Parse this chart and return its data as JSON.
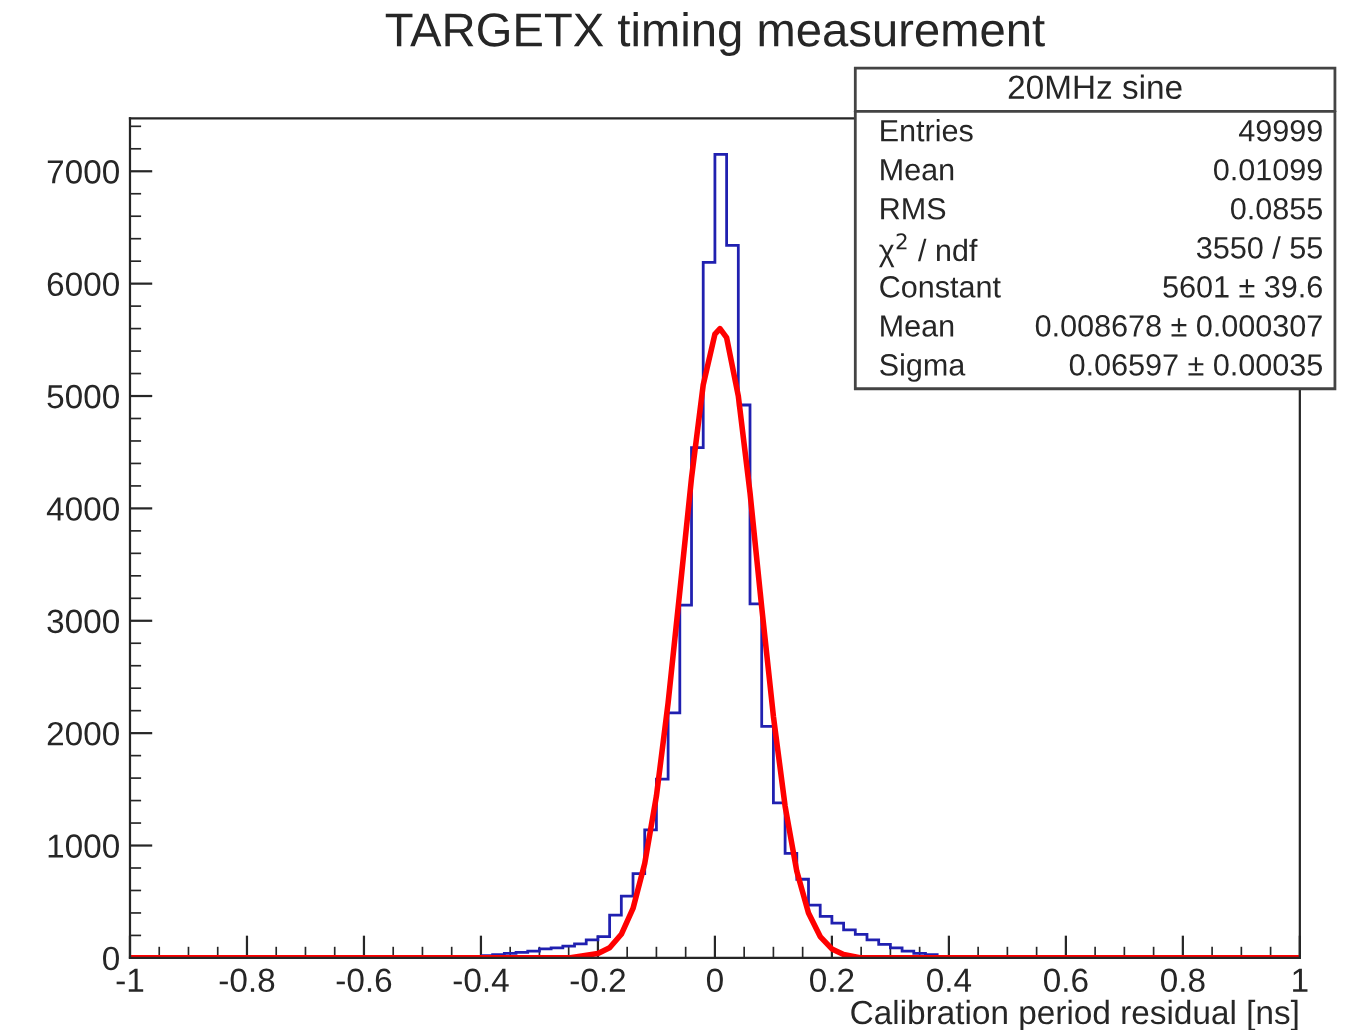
{
  "chart_data": {
    "type": "histogram",
    "title": "TARGETX timing measurement",
    "xlabel": "Calibration period residual [ns]",
    "bins": [
      -0.4,
      -0.38,
      -0.36,
      -0.34,
      -0.32,
      -0.3,
      -0.28,
      -0.26,
      -0.24,
      -0.22,
      -0.2,
      -0.18,
      -0.16,
      -0.14,
      -0.12,
      -0.1,
      -0.08,
      -0.06,
      -0.04,
      -0.02,
      0,
      0.02,
      0.04,
      0.06,
      0.08,
      0.1,
      0.12,
      0.14,
      0.16,
      0.18,
      0.2,
      0.22,
      0.24,
      0.26,
      0.28,
      0.3,
      0.32,
      0.34,
      0.36,
      0.38,
      0.4
    ],
    "values": [
      20,
      30,
      40,
      50,
      60,
      80,
      90,
      105,
      125,
      160,
      190,
      380,
      550,
      750,
      1140,
      1590,
      2180,
      3140,
      4540,
      6190,
      7150,
      6340,
      4920,
      3150,
      2060,
      1380,
      930,
      700,
      470,
      370,
      310,
      250,
      210,
      160,
      120,
      90,
      60,
      40,
      30,
      0
    ],
    "color": "#2020b0",
    "series": [
      {
        "type": "line",
        "color": "#ff0000",
        "x": [
          -1,
          -0.3,
          -0.25,
          -0.2,
          -0.18,
          -0.16,
          -0.14,
          -0.12,
          -0.1,
          -0.08,
          -0.06,
          -0.04,
          -0.02,
          0,
          0.0087,
          0.02,
          0.04,
          0.06,
          0.08,
          0.1,
          0.12,
          0.14,
          0.16,
          0.18,
          0.2,
          0.22,
          0.25,
          0.3,
          1
        ],
        "values": [
          0,
          0,
          0,
          40,
          90,
          210,
          440,
          840,
          1440,
          2270,
          3260,
          4270,
          5100,
          5550,
          5600,
          5520,
          5000,
          4140,
          3120,
          2150,
          1350,
          770,
          400,
          190,
          80,
          30,
          0,
          0,
          0
        ]
      }
    ],
    "xlim": [
      -1,
      1
    ],
    "xticks": [
      -1,
      -0.8,
      -0.6,
      -0.4,
      -0.2,
      0,
      0.2,
      0.4,
      0.6,
      0.8,
      1
    ],
    "ylim": [
      0,
      7470
    ],
    "yticks": [
      0,
      1000,
      2000,
      3000,
      4000,
      5000,
      6000,
      7000
    ],
    "grid": false,
    "legend": false,
    "annotations": [
      "20MHz sine",
      "Entries",
      "49999",
      "Mean",
      "0.01099",
      "RMS",
      "0.0855",
      "χ$^{2}$ / ndf",
      "3550 / 55",
      "Constant",
      "5601 ± 39.6",
      "Mean",
      "0.008678 ± 0.000307",
      "Sigma",
      "0.06597 ± 0.00035"
    ]
  }
}
